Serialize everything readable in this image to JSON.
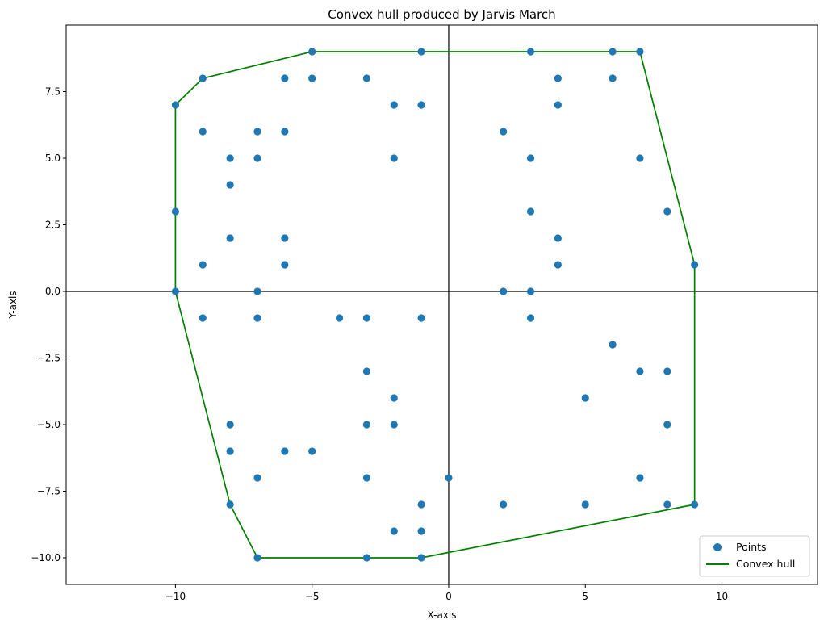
{
  "chart_data": {
    "type": "scatter",
    "title": "Convex hull produced by Jarvis March",
    "xlabel": "X-axis",
    "ylabel": "Y-axis",
    "xlim": [
      -14,
      13.5
    ],
    "ylim": [
      -11,
      10
    ],
    "x_ticks": [
      -10,
      -5,
      0,
      5,
      10
    ],
    "y_ticks": [
      -10.0,
      -7.5,
      -5.0,
      -2.5,
      0.0,
      2.5,
      5.0,
      7.5
    ],
    "x_tick_labels": [
      "−10",
      "−5",
      "0",
      "5",
      "10"
    ],
    "y_tick_labels": [
      "−10.0",
      "−7.5",
      "−5.0",
      "−2.5",
      "0.0",
      "2.5",
      "5.0",
      "7.5"
    ],
    "grid": false,
    "reference_lines": {
      "x": 0,
      "y": 0
    },
    "legend_position": "lower-right",
    "series": [
      {
        "name": "Points",
        "kind": "scatter",
        "color": "#1f77b4",
        "points": [
          [
            -5,
            9
          ],
          [
            -1,
            9
          ],
          [
            3,
            9
          ],
          [
            6,
            9
          ],
          [
            7,
            9
          ],
          [
            -9,
            8
          ],
          [
            -6,
            8
          ],
          [
            -5,
            8
          ],
          [
            -3,
            8
          ],
          [
            4,
            8
          ],
          [
            6,
            8
          ],
          [
            -10,
            7
          ],
          [
            -2,
            7
          ],
          [
            -1,
            7
          ],
          [
            4,
            7
          ],
          [
            -9,
            6
          ],
          [
            -7,
            6
          ],
          [
            -6,
            6
          ],
          [
            2,
            6
          ],
          [
            -8,
            5
          ],
          [
            -7,
            5
          ],
          [
            -2,
            5
          ],
          [
            3,
            5
          ],
          [
            7,
            5
          ],
          [
            -8,
            4
          ],
          [
            -10,
            3
          ],
          [
            3,
            3
          ],
          [
            8,
            3
          ],
          [
            -8,
            2
          ],
          [
            -6,
            2
          ],
          [
            4,
            2
          ],
          [
            -9,
            1
          ],
          [
            -6,
            1
          ],
          [
            4,
            1
          ],
          [
            9,
            1
          ],
          [
            -10,
            0
          ],
          [
            -7,
            0
          ],
          [
            2,
            0
          ],
          [
            3,
            0
          ],
          [
            -9,
            -1
          ],
          [
            -7,
            -1
          ],
          [
            -4,
            -1
          ],
          [
            -3,
            -1
          ],
          [
            -1,
            -1
          ],
          [
            3,
            -1
          ],
          [
            6,
            -2
          ],
          [
            -3,
            -3
          ],
          [
            7,
            -3
          ],
          [
            8,
            -3
          ],
          [
            -2,
            -4
          ],
          [
            5,
            -4
          ],
          [
            -8,
            -5
          ],
          [
            -3,
            -5
          ],
          [
            -2,
            -5
          ],
          [
            8,
            -5
          ],
          [
            -8,
            -6
          ],
          [
            -6,
            -6
          ],
          [
            -5,
            -6
          ],
          [
            -7,
            -7
          ],
          [
            -3,
            -7
          ],
          [
            0,
            -7
          ],
          [
            7,
            -7
          ],
          [
            -8,
            -8
          ],
          [
            -1,
            -8
          ],
          [
            2,
            -8
          ],
          [
            5,
            -8
          ],
          [
            8,
            -8
          ],
          [
            9,
            -8
          ],
          [
            -2,
            -9
          ],
          [
            -1,
            -9
          ],
          [
            -7,
            -10
          ],
          [
            -3,
            -10
          ],
          [
            -1,
            -10
          ]
        ]
      },
      {
        "name": "Convex hull",
        "kind": "line",
        "color": "#008000",
        "points": [
          [
            -10,
            0
          ],
          [
            -8,
            -8
          ],
          [
            -7,
            -10
          ],
          [
            -1,
            -10
          ],
          [
            9,
            -8
          ],
          [
            9,
            1
          ],
          [
            7,
            9
          ],
          [
            -5,
            9
          ],
          [
            -9,
            8
          ],
          [
            -10,
            7
          ],
          [
            -10,
            0
          ]
        ]
      }
    ]
  }
}
